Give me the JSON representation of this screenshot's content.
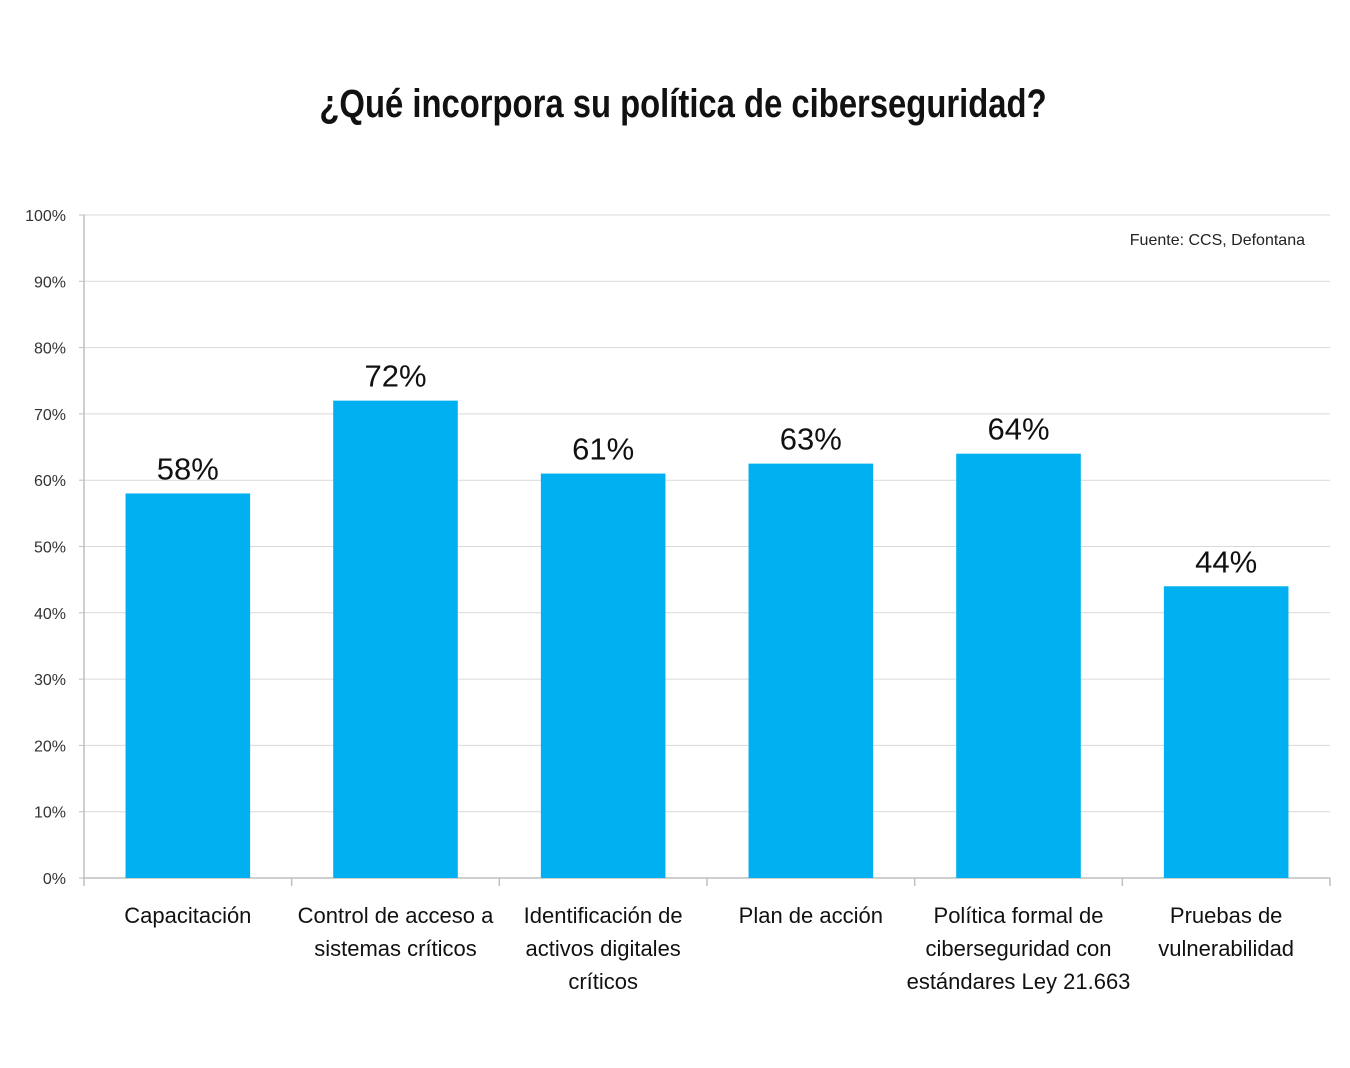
{
  "chart_data": {
    "type": "bar",
    "title": "¿Qué incorpora su política de ciberseguridad?",
    "source": "Fuente: CCS, Defontana",
    "categories": [
      [
        "Capacitación"
      ],
      [
        "Control de acceso a",
        "sistemas críticos"
      ],
      [
        "Identificación de",
        "activos digitales",
        "críticos"
      ],
      [
        "Plan de acción"
      ],
      [
        "Política formal de",
        "ciberseguridad con",
        "estándares Ley 21.663"
      ],
      [
        "Pruebas de",
        "vulnerabilidad"
      ]
    ],
    "values": [
      58,
      72,
      61,
      62.5,
      64,
      44
    ],
    "data_labels": [
      "58%",
      "72%",
      "61%",
      "63%",
      "64%",
      "44%"
    ],
    "ylim": [
      0,
      100
    ],
    "yticks": [
      0,
      10,
      20,
      30,
      40,
      50,
      60,
      70,
      80,
      90,
      100
    ],
    "ytick_labels": [
      "0%",
      "10%",
      "20%",
      "30%",
      "40%",
      "50%",
      "60%",
      "70%",
      "80%",
      "90%",
      "100%"
    ],
    "xlabel": "",
    "ylabel": "",
    "grid": true,
    "legend": "none",
    "colors": {
      "bar": "#00B0F0",
      "grid": "#d9d9d9",
      "axis": "#bfbfbf"
    }
  }
}
